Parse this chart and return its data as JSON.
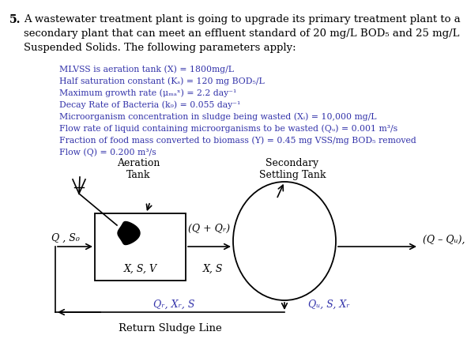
{
  "background_color": "#ffffff",
  "title_number": "5.",
  "title_line1": "A wastewater treatment plant is going to upgrade its primary treatment plant to a",
  "title_line2": "secondary plant that can meet an effluent standard of 20 mg/L BOD₅ and 25 mg/L",
  "title_line3": "Suspended Solids. The following parameters apply:",
  "params": [
    "MLVSS is aeration tank (X) = 1800mg/L",
    "Half saturation constant (Kₛ) = 120 mg BOD₅/L",
    "Maximum growth rate (μₘₐˣ) = 2.2 day⁻¹",
    "Decay Rate of Bacteria (k₉) = 0.055 day⁻¹",
    "Microorganism concentration in sludge being wasted (Xᵢ) = 10,000 mg/L",
    "Flow rate of liquid containing microorganisms to be wasted (Qᵤ) = 0.001 m³/s",
    "Fraction of food mass converted to biomass (Y) = 0.45 mg VSS/mg BOD₅ removed",
    "Flow (Q) = 0.200 m³/s"
  ],
  "aeration_label": "Aeration\nTank",
  "settling_label": "Secondary\nSettling Tank",
  "inside_box": "X, S, V",
  "between_label": "X, S",
  "flow_in": "Q , S₀",
  "flow_out": "(Q – Qᵤ), S, Xᶜ",
  "flow_between": "(Q + Qᵣ)",
  "sludge_bottom_left": "Qᵣ, Xᵣ, S",
  "sludge_bottom_right": "Qᵤ, S, Xᵣ",
  "return_sludge_line": "Return Sludge Line",
  "text_color": "#000000",
  "param_color": "#3333aa"
}
